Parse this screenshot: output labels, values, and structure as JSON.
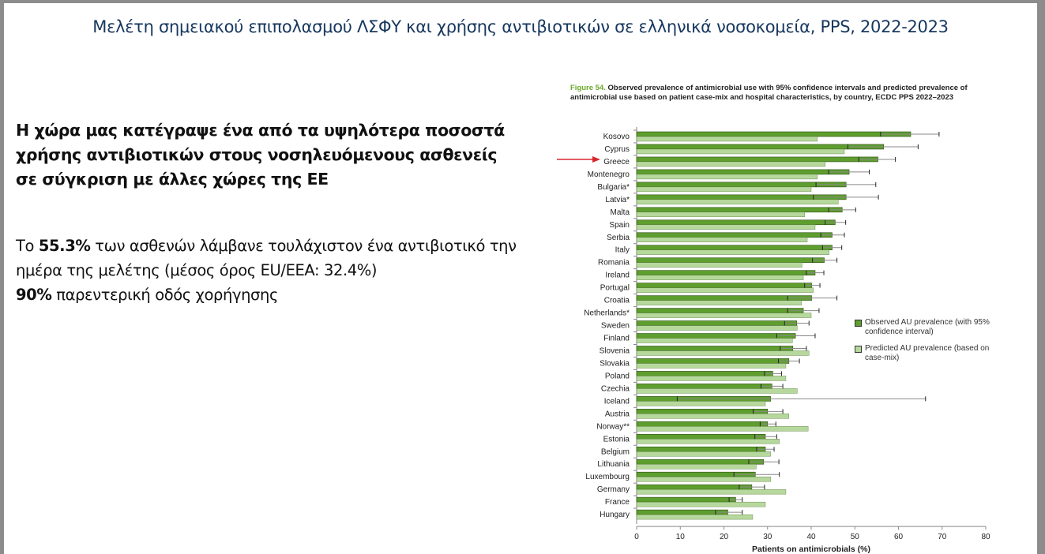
{
  "slide": {
    "title": "Μελέτη σημειακού επιπολασμού ΛΣΦΥ και χρήσης αντιβιοτικών σε ελληνικά νοσοκομεία, PPS, 2022-2023",
    "headline": "Η χώρα μας κατέγραψε ένα από τα υψηλότερα ποσοστά χρήσης αντιβιοτικών στους νοσηλευόμενους ασθενείς σε σύγκριση με άλλες χώρες της ΕΕ",
    "stat1_prefix": "Το ",
    "stat1_value": "55.3%",
    "stat1_suffix": " των ασθενών λάμβανε τουλάχιστον ένα αντιβιοτικό την ημέρα της μελέτης (μέσος όρος EU/EEA: 32.4%)",
    "stat2_value": "90%",
    "stat2_suffix": " παρεντερική οδός χορήγησης",
    "highlight_arrow_target": "Greece",
    "arrow_color": "#d9272e"
  },
  "chart_data": {
    "type": "bar",
    "orientation": "horizontal",
    "figure_label": "Figure 54.",
    "title": "Observed prevalence of antimicrobial use with 95% confidence intervals and predicted prevalence of antimicrobial use based on patient case-mix and hospital characteristics, by country, ECDC PPS 2022–2023",
    "xlabel": "Patients on antimicrobials (%)",
    "xlim": [
      0,
      80
    ],
    "xticks": [
      0,
      10,
      20,
      30,
      40,
      50,
      60,
      70,
      80
    ],
    "grid": false,
    "legend_placement": "right",
    "categories": [
      "Kosovo",
      "Cyprus",
      "Greece",
      "Montenegro",
      "Bulgaria*",
      "Latvia*",
      "Malta",
      "Spain",
      "Serbia",
      "Italy",
      "Romania",
      "Ireland",
      "Portugal",
      "Croatia",
      "Netherlands*",
      "Sweden",
      "Finland",
      "Slovenia",
      "Slovakia",
      "Poland",
      "Czechia",
      "Iceland",
      "Austria",
      "Norway**",
      "Estonia",
      "Belgium",
      "Lithuania",
      "Luxembourg",
      "Germany",
      "France",
      "Hungary"
    ],
    "series": [
      {
        "name": "Observed AU prevalence (with 95% confidence interval)",
        "color": "#5e9e2e",
        "values": [
          62.8,
          56.6,
          55.3,
          48.7,
          48.0,
          48.0,
          47.1,
          45.5,
          44.8,
          44.8,
          43.0,
          40.9,
          40.1,
          40.1,
          38.2,
          36.7,
          36.4,
          35.8,
          34.9,
          31.2,
          31.0,
          30.7,
          30.0,
          30.0,
          29.5,
          29.5,
          29.1,
          27.2,
          26.4,
          22.7,
          20.9
        ],
        "ci_low": [
          55.9,
          48.4,
          50.9,
          44.0,
          41.1,
          40.5,
          44.0,
          43.2,
          42.2,
          42.6,
          40.3,
          38.9,
          38.5,
          34.6,
          34.6,
          33.9,
          32.1,
          32.9,
          32.5,
          29.3,
          28.5,
          9.3,
          26.7,
          28.3,
          27.1,
          27.5,
          25.7,
          22.3,
          23.5,
          21.2,
          18.1
        ],
        "ci_high": [
          69.3,
          64.5,
          59.3,
          53.3,
          54.8,
          55.4,
          50.2,
          47.9,
          47.6,
          47.0,
          45.9,
          42.9,
          42.0,
          45.9,
          41.8,
          39.5,
          40.9,
          38.9,
          37.3,
          33.2,
          33.5,
          66.2,
          33.5,
          31.9,
          32.1,
          31.5,
          32.6,
          32.7,
          29.3,
          24.2,
          24.2
        ]
      },
      {
        "name": "Predicted AU prevalence (based on case-mix)",
        "color": "#b6d89c",
        "values": [
          41.4,
          47.6,
          43.2,
          41.4,
          40.0,
          46.2,
          38.5,
          40.9,
          39.1,
          44.1,
          37.9,
          38.2,
          40.5,
          37.8,
          40.0,
          36.8,
          35.7,
          39.5,
          34.2,
          34.2,
          36.8,
          29.5,
          34.9,
          39.3,
          32.7,
          30.7,
          27.4,
          30.7,
          34.2,
          29.5,
          26.6
        ]
      }
    ]
  }
}
